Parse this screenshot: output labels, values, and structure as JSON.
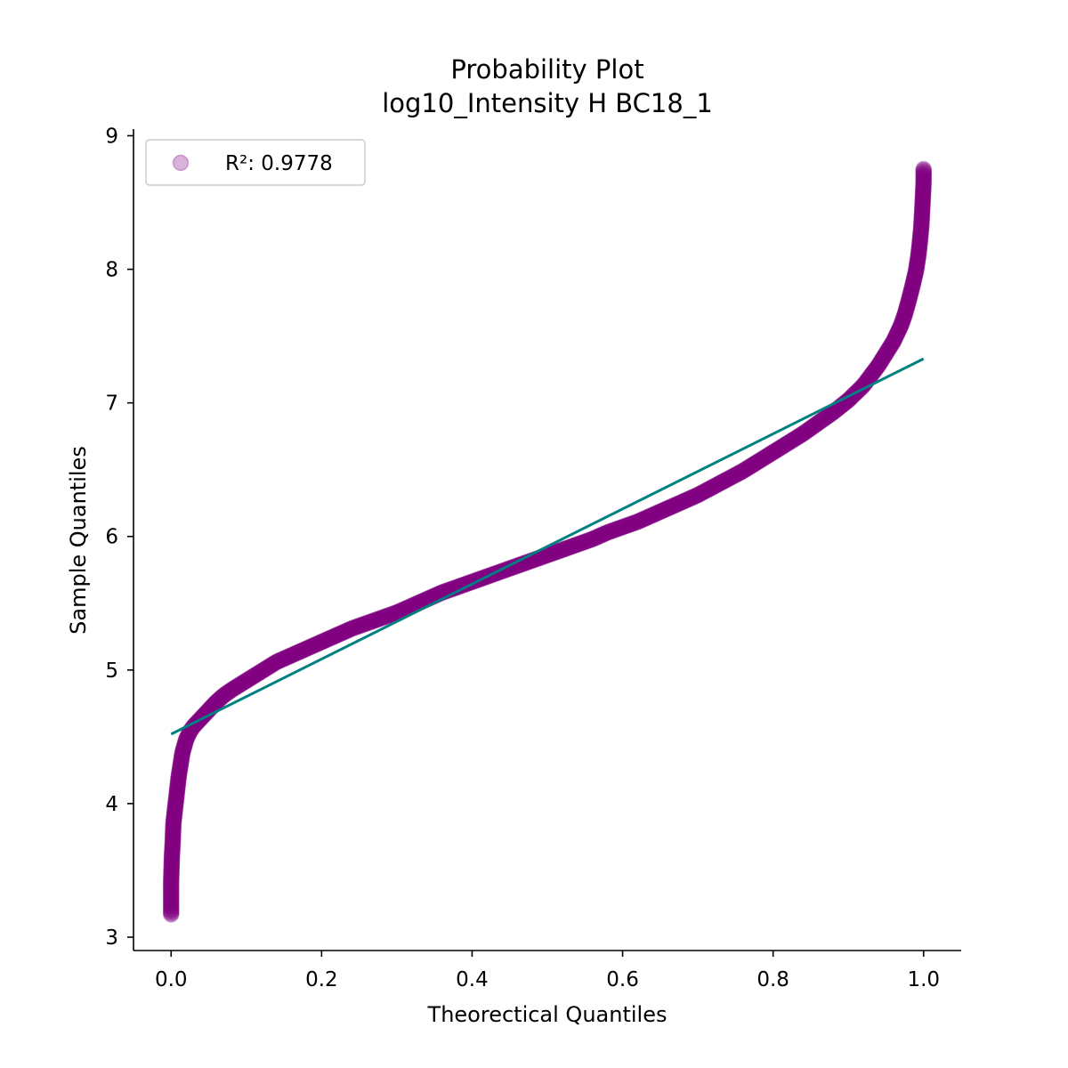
{
  "chart_data": {
    "type": "scatter",
    "title": "Probability Plot",
    "subtitle": "log10_Intensity H BC18_1",
    "xlabel": "Theorectical Quantiles",
    "ylabel": "Sample Quantiles",
    "xlim": [
      -0.05,
      1.05
    ],
    "ylim": [
      2.9,
      9.05
    ],
    "x_ticks": [
      0.0,
      0.2,
      0.4,
      0.6,
      0.8,
      1.0
    ],
    "x_tick_labels": [
      "0.0",
      "0.2",
      "0.4",
      "0.6",
      "0.8",
      "1.0"
    ],
    "y_ticks": [
      3,
      4,
      5,
      6,
      7,
      8,
      9
    ],
    "y_tick_labels": [
      "3",
      "4",
      "5",
      "6",
      "7",
      "8",
      "9"
    ],
    "grid": false,
    "legend": {
      "placement": "top-left",
      "entries": [
        "R²: 0.9778"
      ]
    },
    "series": [
      {
        "name": "R²: 0.9778",
        "kind": "scatter",
        "color": "#800080",
        "opacity": 0.3,
        "x": [
          0.0,
          0.0,
          0.001,
          0.002,
          0.003,
          0.005,
          0.007,
          0.01,
          0.015,
          0.02,
          0.025,
          0.03,
          0.04,
          0.05,
          0.06,
          0.07,
          0.08,
          0.1,
          0.12,
          0.14,
          0.16,
          0.18,
          0.2,
          0.22,
          0.24,
          0.26,
          0.28,
          0.3,
          0.32,
          0.34,
          0.36,
          0.38,
          0.4,
          0.42,
          0.44,
          0.46,
          0.48,
          0.5,
          0.52,
          0.54,
          0.56,
          0.58,
          0.6,
          0.62,
          0.64,
          0.66,
          0.68,
          0.7,
          0.72,
          0.74,
          0.76,
          0.78,
          0.8,
          0.82,
          0.84,
          0.86,
          0.88,
          0.9,
          0.92,
          0.94,
          0.95,
          0.96,
          0.97,
          0.975,
          0.98,
          0.985,
          0.99,
          0.993,
          0.995,
          0.997,
          0.998,
          0.999,
          1.0,
          1.0
        ],
        "y": [
          3.17,
          3.41,
          3.6,
          3.7,
          3.85,
          3.95,
          4.05,
          4.2,
          4.38,
          4.48,
          4.54,
          4.58,
          4.64,
          4.7,
          4.76,
          4.81,
          4.85,
          4.92,
          4.99,
          5.06,
          5.11,
          5.16,
          5.21,
          5.26,
          5.31,
          5.35,
          5.39,
          5.43,
          5.48,
          5.53,
          5.58,
          5.62,
          5.66,
          5.7,
          5.74,
          5.78,
          5.82,
          5.86,
          5.9,
          5.94,
          5.98,
          6.03,
          6.07,
          6.11,
          6.16,
          6.21,
          6.26,
          6.31,
          6.37,
          6.43,
          6.49,
          6.56,
          6.63,
          6.7,
          6.77,
          6.85,
          6.93,
          7.02,
          7.13,
          7.28,
          7.37,
          7.46,
          7.58,
          7.66,
          7.76,
          7.87,
          7.99,
          8.1,
          8.2,
          8.32,
          8.42,
          8.53,
          8.65,
          8.75
        ]
      },
      {
        "name": "",
        "kind": "line",
        "color": "#008080",
        "x": [
          0.0,
          1.0
        ],
        "y": [
          4.52,
          7.33
        ]
      }
    ]
  }
}
